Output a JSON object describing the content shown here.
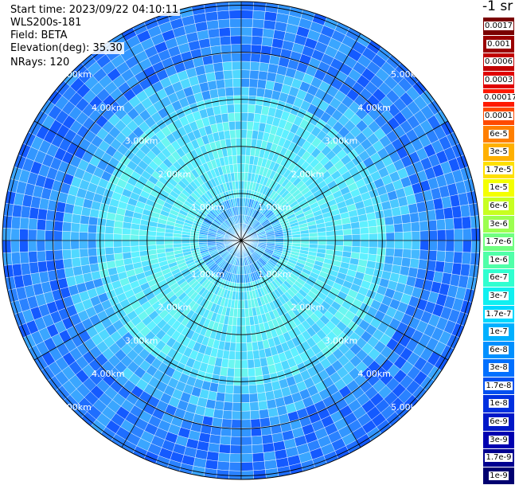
{
  "header": {
    "start_time": "Start time: 2023/09/22 04:10:11",
    "instrument": "WLS200s-181",
    "field": "Field: BETA",
    "elevation": "Elevation(deg): 35.30",
    "nrays": "NRays: 120"
  },
  "colorbar": {
    "unit_label": "-1 sr",
    "entries": [
      {
        "label": "0.0017",
        "color": "#7a0000"
      },
      {
        "label": "0.001",
        "color": "#9a0000"
      },
      {
        "label": "0.0006",
        "color": "#c20000"
      },
      {
        "label": "0.0003",
        "color": "#e00000"
      },
      {
        "label": "0.00017",
        "color": "#ff1a00"
      },
      {
        "label": "0.0001",
        "color": "#ff4a00"
      },
      {
        "label": "6e-5",
        "color": "#ff7f00"
      },
      {
        "label": "3e-5",
        "color": "#ffb000"
      },
      {
        "label": "1.7e-5",
        "color": "#ffe000"
      },
      {
        "label": "1e-5",
        "color": "#f4ff00"
      },
      {
        "label": "6e-6",
        "color": "#c8ff20"
      },
      {
        "label": "3e-6",
        "color": "#9cff50"
      },
      {
        "label": "1.7e-6",
        "color": "#70ff80"
      },
      {
        "label": "1e-6",
        "color": "#50ffa8"
      },
      {
        "label": "6e-7",
        "color": "#30ffd0"
      },
      {
        "label": "3e-7",
        "color": "#10f0f0"
      },
      {
        "label": "1.7e-7",
        "color": "#00d8ff"
      },
      {
        "label": "1e-7",
        "color": "#00b0ff"
      },
      {
        "label": "6e-8",
        "color": "#0090ff"
      },
      {
        "label": "3e-8",
        "color": "#0070ff"
      },
      {
        "label": "1.7e-8",
        "color": "#0050f0"
      },
      {
        "label": "1e-8",
        "color": "#0030e0"
      },
      {
        "label": "6e-9",
        "color": "#0018c8"
      },
      {
        "label": "3e-9",
        "color": "#0000b0"
      },
      {
        "label": "1.7e-9",
        "color": "#000090"
      },
      {
        "label": "1e-9",
        "color": "#000070"
      }
    ]
  },
  "chart_data": {
    "type": "heatmap",
    "projection": "polar (PPI)",
    "field": "BETA",
    "rays": 120,
    "rings_km": [
      1,
      2,
      3,
      4,
      5
    ],
    "ring_label": "km",
    "spoke_step_deg": 30,
    "max_range_km": 5.0,
    "radial_profile": [
      {
        "range_km": 0.0,
        "value": 1e-07
      },
      {
        "range_km": 0.5,
        "value": 1e-07
      },
      {
        "range_km": 1.0,
        "value": 3e-07
      },
      {
        "range_km": 2.0,
        "value": 3e-07
      },
      {
        "range_km": 3.0,
        "value": 1.7e-07
      },
      {
        "range_km": 4.0,
        "value": 6e-08
      },
      {
        "range_km": 5.0,
        "value": 3e-08
      }
    ],
    "dominant_range": [
      "1e-8",
      "3e-7"
    ]
  }
}
